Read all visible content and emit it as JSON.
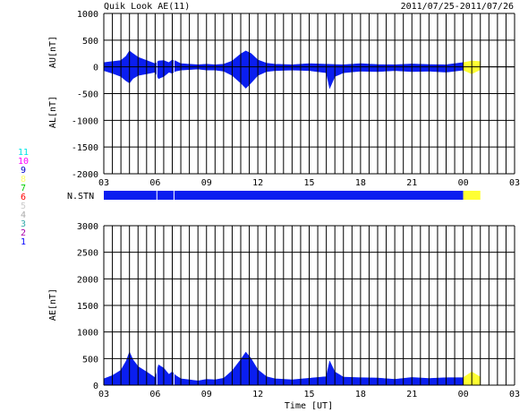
{
  "header": {
    "title": "Quik Look AE(11)",
    "date_range": "2011/07/25-2011/07/26"
  },
  "station_legend": {
    "items": [
      {
        "label": "11",
        "color": "#00e5e5"
      },
      {
        "label": "10",
        "color": "#ff00ff"
      },
      {
        "label": "9",
        "color": "#0000cc"
      },
      {
        "label": "8",
        "color": "#ffff66"
      },
      {
        "label": "7",
        "color": "#00cc00"
      },
      {
        "label": "6",
        "color": "#ff0000"
      },
      {
        "label": "5",
        "color": "#cccccc"
      },
      {
        "label": "4",
        "color": "#aaaaaa"
      },
      {
        "label": "3",
        "color": "#33aaaa"
      },
      {
        "label": "2",
        "color": "#aa00aa"
      },
      {
        "label": "1",
        "color": "#0000ff"
      }
    ]
  },
  "colors": {
    "blue": "#0a1ef0",
    "yellow": "#ffff33",
    "grid": "#000000"
  },
  "chart_data": [
    {
      "type": "area",
      "id": "au_al",
      "ylabel_top": "AU[nT]",
      "ylabel_bottom": "AL[nT]",
      "ylim": [
        -2000,
        1000
      ],
      "yticks": [
        "1000",
        "500",
        "0",
        "-500",
        "-1000",
        "-1500",
        "-2000"
      ],
      "xticks": [
        "03",
        "06",
        "09",
        "12",
        "15",
        "18",
        "21",
        "00",
        "03"
      ],
      "x_unit": "hours UT from 03",
      "x_range": [
        0,
        24
      ],
      "yellow_from_hour": 21,
      "au_series": [
        [
          0,
          80
        ],
        [
          0.5,
          100
        ],
        [
          1,
          120
        ],
        [
          1.3,
          200
        ],
        [
          1.5,
          300
        ],
        [
          1.7,
          250
        ],
        [
          2,
          180
        ],
        [
          2.5,
          120
        ],
        [
          3,
          60
        ],
        [
          3.2,
          110
        ],
        [
          3.5,
          120
        ],
        [
          3.8,
          80
        ],
        [
          4,
          130
        ],
        [
          4.2,
          110
        ],
        [
          4.5,
          60
        ],
        [
          5,
          50
        ],
        [
          5.5,
          40
        ],
        [
          6,
          50
        ],
        [
          6.5,
          40
        ],
        [
          7,
          50
        ],
        [
          7.5,
          110
        ],
        [
          8,
          240
        ],
        [
          8.3,
          300
        ],
        [
          8.6,
          250
        ],
        [
          9,
          130
        ],
        [
          9.5,
          70
        ],
        [
          10,
          50
        ],
        [
          11,
          40
        ],
        [
          12,
          60
        ],
        [
          13,
          50
        ],
        [
          14,
          40
        ],
        [
          15,
          60
        ],
        [
          16,
          45
        ],
        [
          17,
          40
        ],
        [
          18,
          55
        ],
        [
          19,
          45
        ],
        [
          20,
          40
        ],
        [
          21,
          80
        ],
        [
          21.5,
          110
        ],
        [
          22,
          100
        ]
      ],
      "al_series": [
        [
          0,
          -70
        ],
        [
          0.5,
          -120
        ],
        [
          1,
          -180
        ],
        [
          1.3,
          -260
        ],
        [
          1.5,
          -300
        ],
        [
          1.7,
          -220
        ],
        [
          2,
          -160
        ],
        [
          2.5,
          -130
        ],
        [
          3,
          -100
        ],
        [
          3.2,
          -220
        ],
        [
          3.5,
          -180
        ],
        [
          3.8,
          -100
        ],
        [
          4,
          -120
        ],
        [
          4.2,
          -80
        ],
        [
          4.5,
          -60
        ],
        [
          5,
          -50
        ],
        [
          5.5,
          -40
        ],
        [
          6,
          -60
        ],
        [
          6.5,
          -60
        ],
        [
          7,
          -80
        ],
        [
          7.5,
          -160
        ],
        [
          8,
          -300
        ],
        [
          8.3,
          -400
        ],
        [
          8.6,
          -300
        ],
        [
          9,
          -160
        ],
        [
          9.5,
          -90
        ],
        [
          10,
          -70
        ],
        [
          11,
          -60
        ],
        [
          12,
          -70
        ],
        [
          13,
          -110
        ],
        [
          13.2,
          -400
        ],
        [
          13.5,
          -180
        ],
        [
          14,
          -110
        ],
        [
          15,
          -80
        ],
        [
          16,
          -90
        ],
        [
          17,
          -70
        ],
        [
          18,
          -90
        ],
        [
          19,
          -80
        ],
        [
          20,
          -100
        ],
        [
          21,
          -60
        ],
        [
          21.5,
          -130
        ],
        [
          22,
          -50
        ]
      ]
    },
    {
      "type": "bar",
      "id": "nstn",
      "label": "N.STN",
      "segments": [
        {
          "from": 0,
          "to": 21,
          "color": "#0a1ef0"
        },
        {
          "from": 21,
          "to": 22,
          "color": "#ffff33"
        }
      ]
    },
    {
      "type": "area",
      "id": "ae",
      "ylabel": "AE[nT]",
      "xlabel": "Time [UT]",
      "ylim": [
        0,
        3000
      ],
      "yticks": [
        "3000",
        "2500",
        "2000",
        "1500",
        "1000",
        "500",
        "0"
      ],
      "xticks": [
        "03",
        "06",
        "09",
        "12",
        "15",
        "18",
        "21",
        "00",
        "03"
      ],
      "x_range": [
        0,
        24
      ],
      "yellow_from_hour": 21,
      "series": [
        [
          0,
          120
        ],
        [
          0.5,
          180
        ],
        [
          1,
          280
        ],
        [
          1.3,
          450
        ],
        [
          1.5,
          620
        ],
        [
          1.7,
          480
        ],
        [
          2,
          350
        ],
        [
          2.5,
          250
        ],
        [
          3,
          140
        ],
        [
          3.2,
          380
        ],
        [
          3.5,
          320
        ],
        [
          3.8,
          200
        ],
        [
          4,
          250
        ],
        [
          4.2,
          180
        ],
        [
          4.5,
          120
        ],
        [
          5,
          100
        ],
        [
          5.5,
          80
        ],
        [
          6,
          110
        ],
        [
          6.5,
          100
        ],
        [
          7,
          130
        ],
        [
          7.5,
          270
        ],
        [
          8,
          480
        ],
        [
          8.3,
          620
        ],
        [
          8.6,
          500
        ],
        [
          9,
          290
        ],
        [
          9.5,
          160
        ],
        [
          10,
          120
        ],
        [
          11,
          100
        ],
        [
          12,
          130
        ],
        [
          13,
          160
        ],
        [
          13.2,
          450
        ],
        [
          13.5,
          250
        ],
        [
          14,
          150
        ],
        [
          15,
          140
        ],
        [
          16,
          135
        ],
        [
          17,
          110
        ],
        [
          18,
          145
        ],
        [
          19,
          125
        ],
        [
          20,
          140
        ],
        [
          21,
          140
        ],
        [
          21.5,
          250
        ],
        [
          22,
          150
        ]
      ]
    }
  ]
}
